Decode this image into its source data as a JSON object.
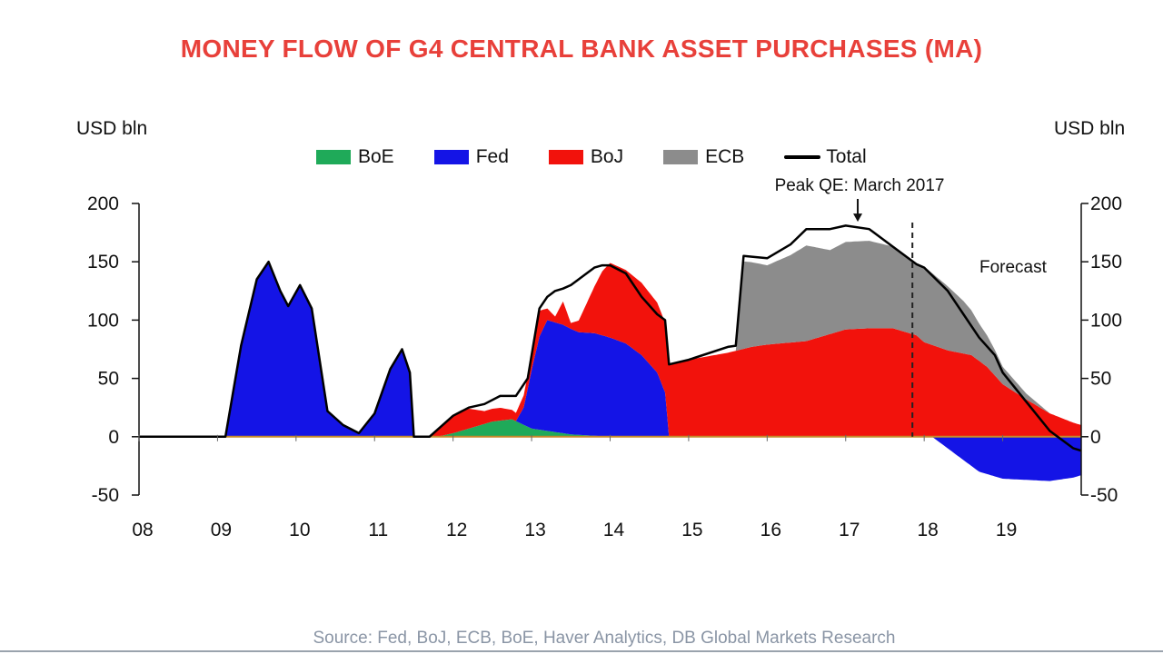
{
  "title": "MONEY FLOW OF G4 CENTRAL BANK ASSET PURCHASES (MA)",
  "ylabel_left": "USD bln",
  "ylabel_right": "USD bln",
  "source": "Source: Fed, BoJ, ECB, BoE, Haver Analytics, DB Global Markets Research",
  "colors": {
    "BoE": "#1faa59",
    "Fed": "#1414e6",
    "BoJ": "#f2120c",
    "ECB": "#8c8c8c",
    "Total": "#000000",
    "title": "#e8403a",
    "zero": "#c58a2c"
  },
  "chart_data": {
    "type": "area",
    "title": "MONEY FLOW OF G4 CENTRAL BANK ASSET PURCHASES (MA)",
    "ylabel": "USD bln",
    "ylim": [
      -50,
      200
    ],
    "xlim": [
      2008,
      2020
    ],
    "yticks": [
      -50,
      0,
      50,
      100,
      150,
      200
    ],
    "x_tick_labels": [
      {
        "x": 2008,
        "label": "08"
      },
      {
        "x": 2009,
        "label": "09"
      },
      {
        "x": 2010,
        "label": "10"
      },
      {
        "x": 2011,
        "label": "11"
      },
      {
        "x": 2012,
        "label": "12"
      },
      {
        "x": 2013,
        "label": "13"
      },
      {
        "x": 2014,
        "label": "14"
      },
      {
        "x": 2015,
        "label": "15"
      },
      {
        "x": 2016,
        "label": "16"
      },
      {
        "x": 2017,
        "label": "17"
      },
      {
        "x": 2018,
        "label": "18"
      },
      {
        "x": 2019,
        "label": "19"
      }
    ],
    "legend": [
      "BoE",
      "Fed",
      "BoJ",
      "ECB",
      "Total"
    ],
    "legend_position": "top-center",
    "stack_order": [
      "BoE",
      "Fed",
      "BoJ",
      "ECB"
    ],
    "series": [
      {
        "name": "BoE",
        "x": [
          2008.0,
          2010.0,
          2010.5,
          2010.8,
          2011.8,
          2012.0,
          2012.5,
          2012.75,
          2013.0,
          2013.5,
          2014.0,
          2018.8,
          2019.0,
          2019.3,
          2019.9,
          2020.0
        ],
        "values": [
          0,
          0,
          0,
          0,
          0,
          3,
          13,
          15,
          7,
          2,
          0,
          0,
          0,
          0,
          0,
          0
        ]
      },
      {
        "name": "Fed",
        "x": [
          2008.0,
          2009.1,
          2009.3,
          2009.5,
          2009.65,
          2009.8,
          2009.9,
          2010.05,
          2010.2,
          2010.4,
          2010.6,
          2010.8,
          2011.0,
          2011.2,
          2011.35,
          2011.45,
          2011.5,
          2012.0,
          2012.8,
          2012.9,
          2013.0,
          2013.1,
          2013.2,
          2013.4,
          2013.6,
          2013.8,
          2014.0,
          2014.2,
          2014.4,
          2014.6,
          2014.7,
          2014.75,
          2018.1,
          2018.3,
          2018.5,
          2018.7,
          2019.0,
          2019.3,
          2019.6,
          2019.9,
          2020.0
        ],
        "values": [
          0,
          0,
          78,
          135,
          150,
          125,
          112,
          130,
          110,
          22,
          10,
          3,
          20,
          58,
          75,
          55,
          0,
          0,
          0,
          15,
          50,
          80,
          95,
          93,
          88,
          88,
          85,
          80,
          70,
          55,
          38,
          0,
          0,
          -10,
          -20,
          -30,
          -36,
          -37,
          -38,
          -35,
          -33
        ]
      },
      {
        "name": "BoJ",
        "x": [
          2008.0,
          2011.7,
          2012.0,
          2012.2,
          2012.4,
          2012.6,
          2012.8,
          2012.95,
          2013.1,
          2013.2,
          2013.3,
          2013.4,
          2013.5,
          2013.6,
          2013.7,
          2013.8,
          2013.9,
          2014.0,
          2014.2,
          2014.4,
          2014.6,
          2014.7,
          2014.75,
          2015.0,
          2015.5,
          2015.8,
          2016.0,
          2016.5,
          2017.0,
          2017.3,
          2017.6,
          2017.9,
          2018.0,
          2018.3,
          2018.6,
          2018.8,
          2019.0,
          2019.3,
          2019.6,
          2019.9,
          2020.0
        ],
        "values": [
          0,
          0,
          15,
          17,
          11,
          11,
          7,
          12,
          22,
          10,
          5,
          20,
          5,
          10,
          25,
          40,
          55,
          64,
          63,
          62,
          60,
          60,
          62,
          66,
          72,
          77,
          79,
          82,
          92,
          93,
          93,
          87,
          81,
          74,
          70,
          60,
          45,
          32,
          20,
          12,
          10
        ]
      },
      {
        "name": "ECB",
        "x": [
          2008.0,
          2015.6,
          2015.7,
          2016.0,
          2016.3,
          2016.5,
          2016.8,
          2017.0,
          2017.3,
          2017.6,
          2017.9,
          2018.0,
          2018.3,
          2018.5,
          2018.7,
          2018.9,
          2019.0,
          2019.3,
          2019.6,
          2019.9,
          2020.0
        ],
        "values": [
          0,
          0,
          75,
          68,
          75,
          82,
          72,
          75,
          75,
          70,
          60,
          65,
          55,
          45,
          32,
          22,
          15,
          5,
          0,
          0,
          0
        ]
      },
      {
        "name": "Total",
        "x": [
          2008.0,
          2009.1,
          2009.3,
          2009.5,
          2009.65,
          2009.8,
          2009.9,
          2010.05,
          2010.2,
          2010.4,
          2010.6,
          2010.8,
          2011.0,
          2011.2,
          2011.35,
          2011.45,
          2011.5,
          2011.7,
          2012.0,
          2012.2,
          2012.4,
          2012.6,
          2012.8,
          2012.95,
          2013.1,
          2013.2,
          2013.3,
          2013.4,
          2013.5,
          2013.6,
          2013.7,
          2013.8,
          2013.9,
          2014.0,
          2014.2,
          2014.4,
          2014.6,
          2014.7,
          2014.75,
          2015.0,
          2015.5,
          2015.6,
          2015.7,
          2016.0,
          2016.3,
          2016.5,
          2016.8,
          2017.0,
          2017.3,
          2017.6,
          2017.9,
          2018.0,
          2018.3,
          2018.5,
          2018.7,
          2018.9,
          2019.0,
          2019.3,
          2019.6,
          2019.9,
          2020.0
        ],
        "values": [
          0,
          0,
          78,
          135,
          150,
          125,
          112,
          130,
          110,
          22,
          10,
          3,
          20,
          58,
          75,
          55,
          0,
          0,
          18,
          25,
          28,
          35,
          35,
          50,
          110,
          120,
          125,
          127,
          130,
          135,
          140,
          145,
          147,
          147,
          140,
          120,
          105,
          100,
          62,
          66,
          77,
          78,
          155,
          153,
          165,
          178,
          178,
          181,
          178,
          163,
          148,
          145,
          125,
          105,
          85,
          70,
          55,
          30,
          5,
          -10,
          -12
        ]
      }
    ],
    "annotations": [
      {
        "text": "Peak QE: March 2017",
        "x": 2017.2,
        "y": 182,
        "type": "arrow"
      },
      {
        "text": "Forecast",
        "x": 2018.9,
        "y": 145,
        "divider_x": 2017.85
      }
    ]
  }
}
